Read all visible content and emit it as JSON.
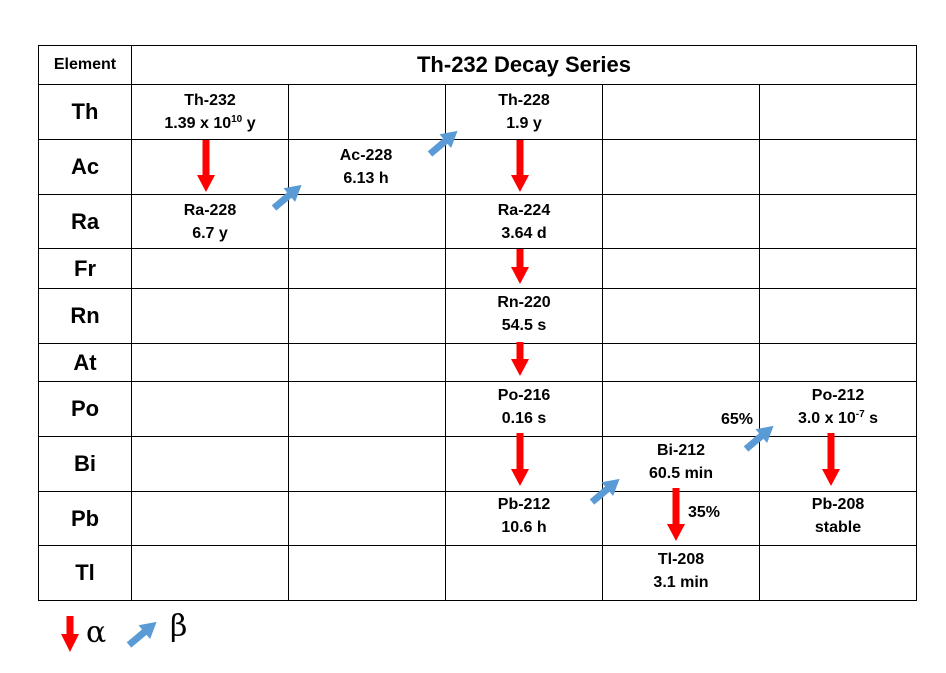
{
  "table": {
    "header_element": "Element",
    "title": "Th-232 Decay Series",
    "elements": [
      "Th",
      "Ac",
      "Ra",
      "Fr",
      "Rn",
      "At",
      "Po",
      "Bi",
      "Pb",
      "Tl"
    ]
  },
  "nuclides": [
    {
      "name": "Th-232",
      "half_life_pre": "1.39 x 10",
      "half_life_exp": "10",
      "half_life_post": " y"
    },
    {
      "name": "Ac-228",
      "half_life": "6.13 h"
    },
    {
      "name": "Th-228",
      "half_life": "1.9 y"
    },
    {
      "name": "Ra-228",
      "half_life": "6.7 y"
    },
    {
      "name": "Ra-224",
      "half_life": "3.64 d"
    },
    {
      "name": "Rn-220",
      "half_life": "54.5 s"
    },
    {
      "name": "Po-216",
      "half_life": "0.16 s"
    },
    {
      "name": "Po-212",
      "half_life_pre": "3.0 x 10",
      "half_life_exp": "-7",
      "half_life_post": " s"
    },
    {
      "name": "Bi-212",
      "half_life": "60.5 min"
    },
    {
      "name": "Pb-212",
      "half_life": "10.6 h"
    },
    {
      "name": "Pb-208",
      "half_life": "stable"
    },
    {
      "name": "Tl-208",
      "half_life": "3.1 min"
    }
  ],
  "branching": {
    "beta": "65%",
    "alpha": "35%"
  },
  "legend": {
    "alpha": "α",
    "beta": "β"
  },
  "colors": {
    "alpha_arrow": "#ff0000",
    "beta_arrow": "#5b9bd5",
    "grid": "#000000"
  }
}
